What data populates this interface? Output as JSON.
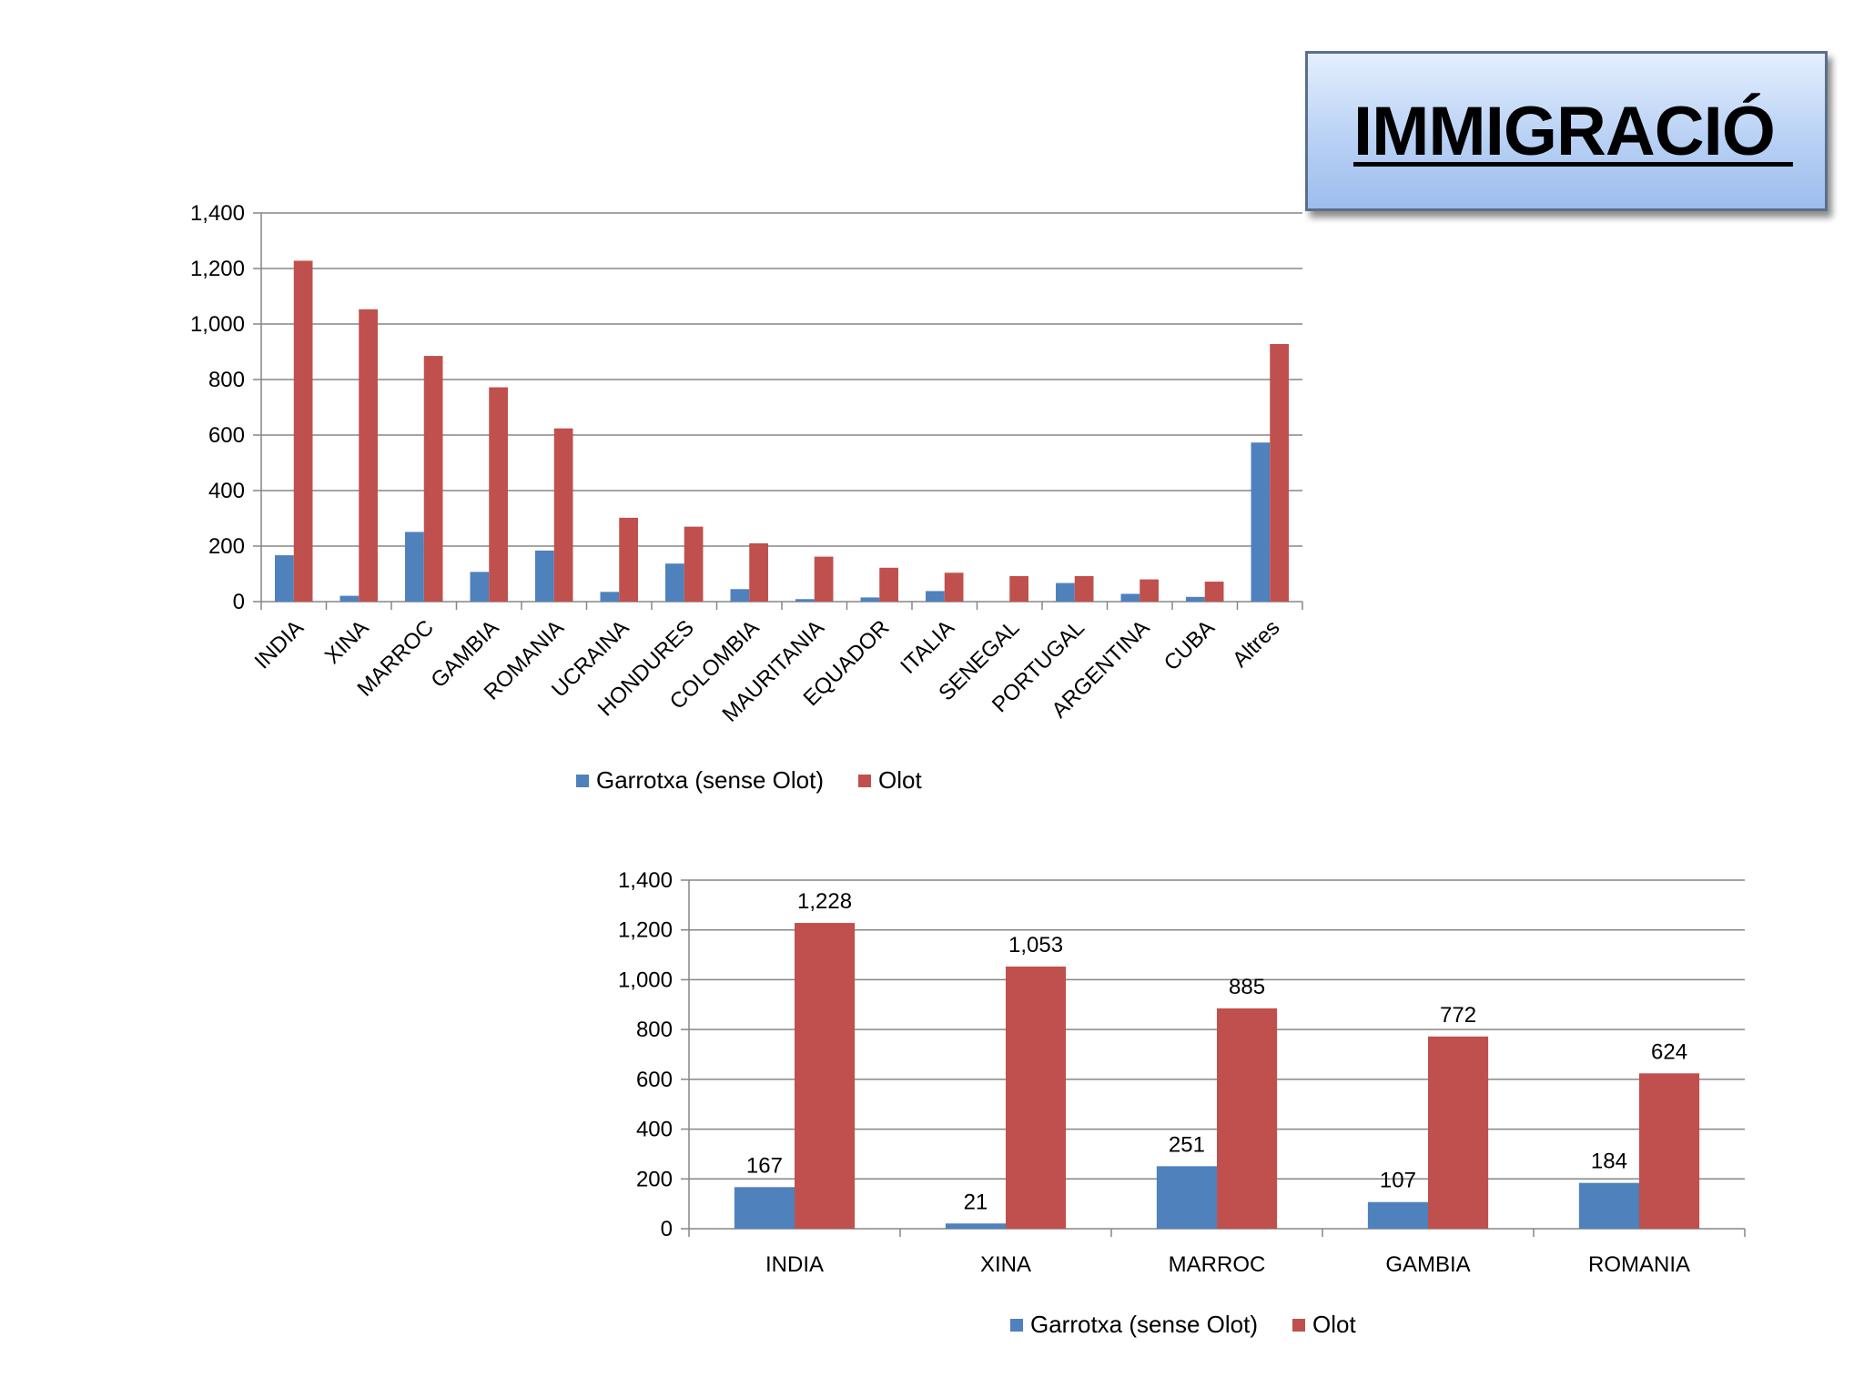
{
  "slide": {
    "title": "IMMIGRACIÓ "
  },
  "colors": {
    "garrotxa": "#4f81bd",
    "olot": "#c0504d",
    "grid": "#868686",
    "axis": "#868686"
  },
  "chart_data": [
    {
      "type": "bar",
      "title": "",
      "xlabel": "",
      "ylabel": "",
      "ylim": [
        0,
        1400
      ],
      "yticks": [
        "0",
        "200",
        "400",
        "600",
        "800",
        "1,000",
        "1,200",
        "1,400"
      ],
      "grid": true,
      "legend": "bottom",
      "categories": [
        "INDIA",
        "XINA",
        "MARROC",
        "GAMBIA",
        "ROMANIA",
        "UCRAINA",
        "HONDURES",
        "COLOMBIA",
        "MAURITANIA",
        "EQUADOR",
        "ITALIA",
        "SENEGAL",
        "PORTUGAL",
        "ARGENTINA",
        "CUBA",
        "Altres"
      ],
      "series": [
        {
          "name": "Garrotxa (sense Olot)",
          "values": [
            167,
            21,
            251,
            107,
            184,
            35,
            137,
            45,
            9,
            15,
            38,
            0,
            67,
            28,
            17,
            573
          ]
        },
        {
          "name": "Olot",
          "values": [
            1228,
            1053,
            885,
            772,
            624,
            302,
            270,
            210,
            162,
            122,
            104,
            92,
            92,
            80,
            72,
            928
          ]
        }
      ]
    },
    {
      "type": "bar",
      "title": "",
      "xlabel": "",
      "ylabel": "",
      "ylim": [
        0,
        1400
      ],
      "yticks": [
        "0",
        "200",
        "400",
        "600",
        "800",
        "1,000",
        "1,200",
        "1,400"
      ],
      "grid": true,
      "legend": "bottom",
      "categories": [
        "INDIA",
        "XINA",
        "MARROC",
        "GAMBIA",
        "ROMANIA"
      ],
      "series": [
        {
          "name": "Garrotxa (sense Olot)",
          "values": [
            167,
            21,
            251,
            107,
            184
          ],
          "labels": [
            "167",
            "21",
            "251",
            "107",
            "184"
          ]
        },
        {
          "name": "Olot",
          "values": [
            1228,
            1053,
            885,
            772,
            624
          ],
          "labels": [
            "1,228",
            "1,053",
            "885",
            "772",
            "624"
          ]
        }
      ]
    }
  ]
}
